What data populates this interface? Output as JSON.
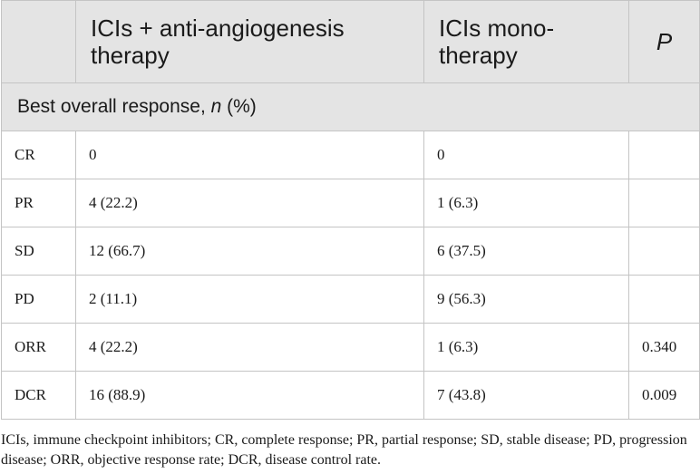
{
  "table": {
    "headers": [
      "",
      "ICIs + anti-angiogenesis therapy",
      "ICIs mono-therapy",
      "P"
    ],
    "section": {
      "label": "Best overall response, ",
      "var": "n",
      "unit": " (%)"
    },
    "rows": [
      [
        "CR",
        "0",
        "0",
        ""
      ],
      [
        "PR",
        "4 (22.2)",
        "1 (6.3)",
        ""
      ],
      [
        "SD",
        "12 (66.7)",
        "6 (37.5)",
        ""
      ],
      [
        "PD",
        "2 (11.1)",
        "9 (56.3)",
        ""
      ],
      [
        "ORR",
        "4 (22.2)",
        "1 (6.3)",
        "0.340"
      ],
      [
        "DCR",
        "16 (88.9)",
        "7 (43.8)",
        "0.009"
      ]
    ]
  },
  "footnote": "ICIs, immune checkpoint inhibitors; CR, complete response; PR, partial response; SD, stable disease; PD, progression disease; ORR, objective response rate; DCR, disease control rate."
}
